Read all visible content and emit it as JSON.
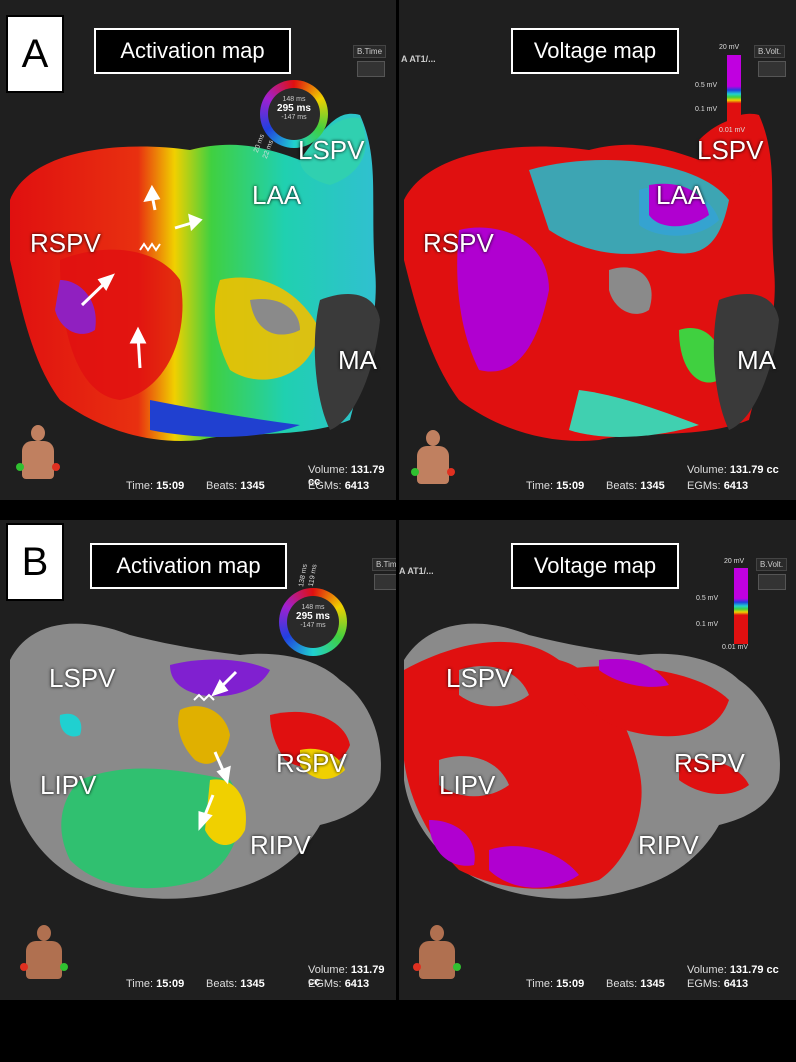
{
  "panel_a": {
    "tag": "A",
    "activation": {
      "title": "Activation map",
      "dropdown": "B.Time",
      "ring": {
        "top": "148 ms",
        "mid": "295 ms",
        "bot": "-147 ms",
        "left1": "20 ms",
        "left2": "22 ms"
      },
      "labels": {
        "lspv": "LSPV",
        "laa": "LAA",
        "rspv": "RSPV",
        "ma": "MA"
      },
      "footer": {
        "volume_label": "Volume:",
        "volume": "131.79 cc",
        "time_label": "Time:",
        "time": "15:09",
        "beats_label": "Beats:",
        "beats": "1345",
        "egms_label": "EGMs:",
        "egms": "6413"
      }
    },
    "voltage": {
      "title": "Voltage map",
      "header": "A AT1/...",
      "dropdown": "B.Volt.",
      "scale": {
        "max": "20 mV",
        "v05": "0.5 mV",
        "v01": "0.1 mV",
        "min": "0.01 mV"
      },
      "labels": {
        "lspv": "LSPV",
        "laa": "LAA",
        "rspv": "RSPV",
        "ma": "MA"
      },
      "footer": {
        "volume_label": "Volume:",
        "volume": "131.79 cc",
        "time_label": "Time:",
        "time": "15:09",
        "beats_label": "Beats:",
        "beats": "1345",
        "egms_label": "EGMs:",
        "egms": "6413"
      }
    }
  },
  "panel_b": {
    "tag": "B",
    "activation": {
      "title": "Activation map",
      "dropdown": "B.Tim",
      "ring": {
        "top": "148 ms",
        "mid": "295 ms",
        "bot": "-147 ms",
        "r1": "119 ms",
        "r2": "138 ms"
      },
      "labels": {
        "lspv": "LSPV",
        "lipv": "LIPV",
        "rspv": "RSPV",
        "ripv": "RIPV"
      },
      "footer": {
        "volume_label": "Volume:",
        "volume": "131.79 cc",
        "time_label": "Time:",
        "time": "15:09",
        "beats_label": "Beats:",
        "beats": "1345",
        "egms_label": "EGMs:",
        "egms": "6413"
      }
    },
    "voltage": {
      "title": "Voltage map",
      "header": "A AT1/...",
      "dropdown": "B.Volt.",
      "scale": {
        "max": "20 mV",
        "v05": "0.5 mV",
        "v01": "0.1 mV",
        "min": "0.01 mV"
      },
      "labels": {
        "lspv": "LSPV",
        "lipv": "LIPV",
        "rspv": "RSPV",
        "ripv": "RIPV"
      },
      "footer": {
        "volume_label": "Volume:",
        "volume": "131.79 cc",
        "time_label": "Time:",
        "time": "15:09",
        "beats_label": "Beats:",
        "beats": "1345",
        "egms_label": "EGMs:",
        "egms": "6413"
      }
    }
  },
  "colors": {
    "activation_red": "#e01010",
    "voltage_purple": "#b000d0",
    "scar_gray": "#8a8a8a"
  }
}
